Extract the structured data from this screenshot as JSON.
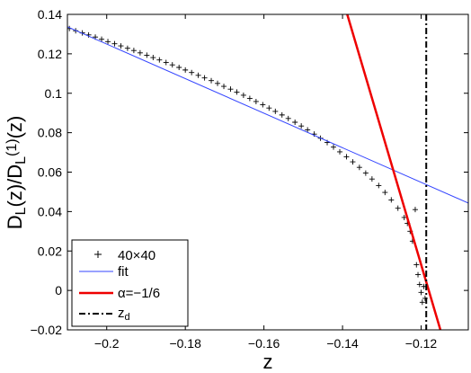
{
  "chart_data": {
    "type": "line",
    "xlabel": "z",
    "ylabel": {
      "parts": [
        "D",
        "L",
        "(z)/D",
        "L",
        "(1)",
        "(z)"
      ]
    },
    "xlim": [
      -0.21,
      -0.108
    ],
    "ylim": [
      -0.02,
      0.14
    ],
    "xticks": [
      -0.2,
      -0.18,
      -0.16,
      -0.14,
      -0.12
    ],
    "xtick_labels": [
      "−0.2",
      "−0.18",
      "−0.16",
      "−0.14",
      "−0.12"
    ],
    "yticks": [
      -0.02,
      0,
      0.02,
      0.04,
      0.06,
      0.08,
      0.1,
      0.12,
      0.14
    ],
    "ytick_labels": [
      "−0.02",
      "0",
      "0.02",
      "0.04",
      "0.06",
      "0.08",
      "0.1",
      "0.12",
      "0.14"
    ],
    "grid": false,
    "legend_position": "bottom-left",
    "series": [
      {
        "name": "40×40",
        "style": "markers-plus",
        "color": "#000000",
        "points": [
          [
            -0.2095,
            0.1328
          ],
          [
            -0.2079,
            0.1317
          ],
          [
            -0.2062,
            0.1306
          ],
          [
            -0.2046,
            0.1296
          ],
          [
            -0.2029,
            0.1285
          ],
          [
            -0.2013,
            0.1274
          ],
          [
            -0.1997,
            0.1262
          ],
          [
            -0.198,
            0.1251
          ],
          [
            -0.1964,
            0.124
          ],
          [
            -0.1947,
            0.1228
          ],
          [
            -0.1931,
            0.1217
          ],
          [
            -0.1915,
            0.1205
          ],
          [
            -0.1898,
            0.1193
          ],
          [
            -0.1882,
            0.1181
          ],
          [
            -0.1866,
            0.1169
          ],
          [
            -0.1849,
            0.1156
          ],
          [
            -0.1833,
            0.1144
          ],
          [
            -0.1816,
            0.1131
          ],
          [
            -0.18,
            0.1118
          ],
          [
            -0.1784,
            0.1105
          ],
          [
            -0.1767,
            0.1091
          ],
          [
            -0.1751,
            0.1078
          ],
          [
            -0.1734,
            0.1064
          ],
          [
            -0.1718,
            0.105
          ],
          [
            -0.1702,
            0.1035
          ],
          [
            -0.1685,
            0.1021
          ],
          [
            -0.1669,
            0.1006
          ],
          [
            -0.1652,
            0.099
          ],
          [
            -0.1636,
            0.0974
          ],
          [
            -0.162,
            0.0958
          ],
          [
            -0.1603,
            0.0942
          ],
          [
            -0.1587,
            0.0925
          ],
          [
            -0.1571,
            0.0908
          ],
          [
            -0.1554,
            0.089
          ],
          [
            -0.1538,
            0.0872
          ],
          [
            -0.1521,
            0.0853
          ],
          [
            -0.1505,
            0.0834
          ],
          [
            -0.1489,
            0.0814
          ],
          [
            -0.1472,
            0.0793
          ],
          [
            -0.1456,
            0.0772
          ],
          [
            -0.1439,
            0.075
          ],
          [
            -0.1423,
            0.0727
          ],
          [
            -0.1407,
            0.0703
          ],
          [
            -0.139,
            0.0678
          ],
          [
            -0.1374,
            0.0652
          ],
          [
            -0.1357,
            0.0624
          ],
          [
            -0.1341,
            0.0595
          ],
          [
            -0.1325,
            0.0565
          ],
          [
            -0.1308,
            0.0532
          ],
          [
            -0.1292,
            0.0497
          ],
          [
            -0.1276,
            0.0459
          ],
          [
            -0.1259,
            0.0417
          ],
          [
            -0.1243,
            0.037
          ],
          [
            -0.1235,
            0.034
          ],
          [
            -0.1228,
            0.03
          ],
          [
            -0.1222,
            0.025
          ],
          [
            -0.1215,
            0.041
          ],
          [
            -0.1212,
            0.013
          ],
          [
            -0.1208,
            0.008
          ],
          [
            -0.1204,
            0.003
          ],
          [
            -0.12,
            -0.001
          ],
          [
            -0.1197,
            -0.006
          ],
          [
            -0.1193,
            0.002
          ],
          [
            -0.119,
            -0.004
          ]
        ]
      },
      {
        "name": "fit",
        "style": "line-thin",
        "color": "#3344ff",
        "points": [
          [
            -0.21,
            0.1337
          ],
          [
            -0.108,
            0.0443
          ]
        ]
      },
      {
        "name": "α=−1/6",
        "style": "line-thick",
        "color": "#ee0000",
        "points": [
          [
            -0.1388,
            0.14
          ],
          [
            -0.1151,
            -0.02
          ]
        ]
      },
      {
        "name": "z_d",
        "legend_label": {
          "main": "z",
          "sub": "d"
        },
        "style": "dashdot-vertical",
        "color": "#000000",
        "x": -0.1187
      }
    ],
    "legend_labels": [
      "40×40",
      "fit",
      "α=−1/6"
    ]
  }
}
